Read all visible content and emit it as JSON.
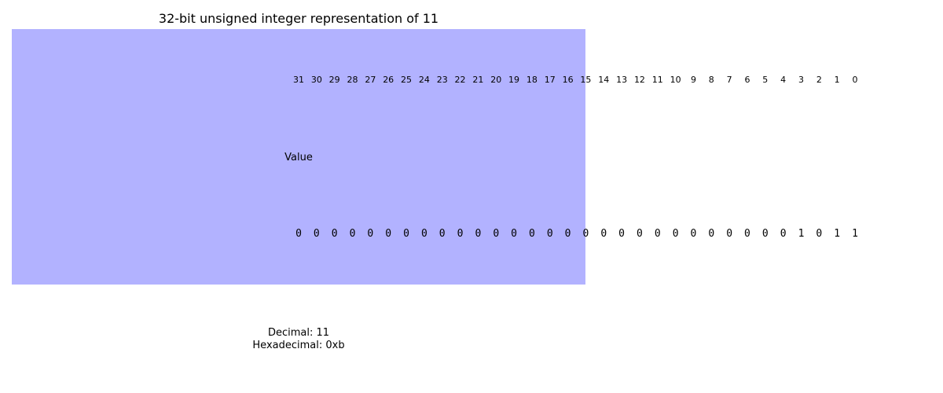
{
  "title": "32-bit unsigned integer representation of 11",
  "row_label": "Value",
  "decimal_text": "Decimal: 11",
  "hex_text": "Hexadecimal: 0xb",
  "colors": {
    "highlight_fill": "#b2b2ff",
    "text": "#000000",
    "background": "#ffffff"
  },
  "bit_indices": [
    "31",
    "30",
    "29",
    "28",
    "27",
    "26",
    "25",
    "24",
    "23",
    "22",
    "21",
    "20",
    "19",
    "18",
    "17",
    "16",
    "15",
    "14",
    "13",
    "12",
    "11",
    "10",
    "9",
    "8",
    "7",
    "6",
    "5",
    "4",
    "3",
    "2",
    "1",
    "0"
  ],
  "bits": [
    "0",
    "0",
    "0",
    "0",
    "0",
    "0",
    "0",
    "0",
    "0",
    "0",
    "0",
    "0",
    "0",
    "0",
    "0",
    "0",
    "0",
    "0",
    "0",
    "0",
    "0",
    "0",
    "0",
    "0",
    "0",
    "0",
    "0",
    "0",
    "1",
    "0",
    "1",
    "1"
  ]
}
